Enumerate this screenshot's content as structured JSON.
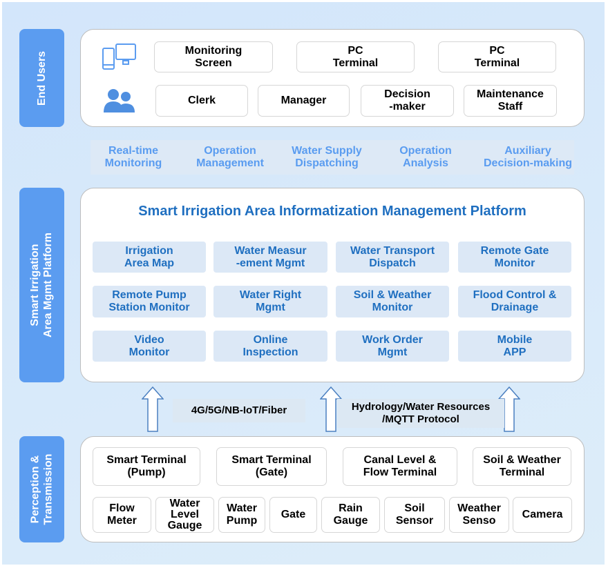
{
  "layers": {
    "end_users": "End Users",
    "platform": "Smart Irrigation\nArea Mgmt Platform",
    "perception": "Perception &\nTransmission"
  },
  "end_users": {
    "devices": [
      "Monitoring\nScreen",
      "PC\nTerminal",
      "PC\nTerminal"
    ],
    "roles": [
      "Clerk",
      "Manager",
      "Decision\n-maker",
      "Maintenance\nStaff"
    ],
    "icons": [
      "devices-icon",
      "users-icon"
    ]
  },
  "functions": [
    "Real-time\nMonitoring",
    "Operation\nManagement",
    "Water Supply\nDispatching",
    "Operation\nAnalysis",
    "Auxiliary\nDecision-making"
  ],
  "platform": {
    "title": "Smart Irrigation Area Informatization Management Platform",
    "modules": [
      "Irrigation\nArea Map",
      "Water Measur\n-ement Mgmt",
      "Water Transport\nDispatch",
      "Remote Gate\nMonitor",
      "Remote Pump\nStation Monitor",
      "Water Right\nMgmt",
      "Soil & Weather\nMonitor",
      "Flood Control &\nDrainage",
      "Video\nMonitor",
      "Online\nInspection",
      "Work Order\nMgmt",
      "Mobile\nAPP"
    ]
  },
  "transmission": {
    "network": "4G/5G/NB-IoT/Fiber",
    "protocol": "Hydrology/Water Resources\n/MQTT Protocol"
  },
  "perception": {
    "terminals": [
      "Smart Terminal\n(Pump)",
      "Smart Terminal\n(Gate)",
      "Canal Level &\nFlow Terminal",
      "Soil & Weather\nTerminal"
    ],
    "devices": [
      "Flow\nMeter",
      "Water\nLevel\nGauge",
      "Water\nPump",
      "Gate",
      "Rain\nGauge",
      "Soil\nSensor",
      "Weather\nSenso",
      "Camera"
    ]
  },
  "colors": {
    "layer_label": "#5b9cf0",
    "platform_text": "#1f6fc0",
    "function_text": "#5a9cf0",
    "module_bg": "#dce8f6"
  }
}
